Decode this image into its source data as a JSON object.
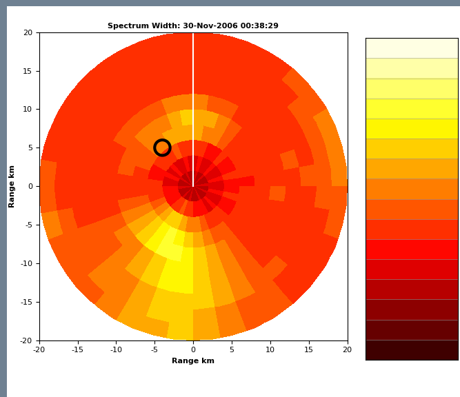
{
  "chart_data": {
    "type": "heatmap",
    "title": "Spectrum Width: 30-Nov-2006 00:38:29",
    "x_label": "Range km",
    "y_label": "Range km",
    "xlim": [
      -20,
      20
    ],
    "ylim": [
      -20,
      20
    ],
    "xticks": [
      -20,
      -15,
      -10,
      -5,
      0,
      5,
      10,
      15,
      20
    ],
    "yticks": [
      -20,
      -15,
      -10,
      -5,
      0,
      5,
      10,
      15,
      20
    ],
    "range_bins": [
      0,
      2,
      4,
      6,
      8,
      10,
      12,
      14,
      16,
      18,
      20
    ],
    "azimuth_bins": [
      0,
      10,
      20,
      30,
      40,
      50,
      60,
      70,
      80,
      90,
      100,
      110,
      120,
      130,
      140,
      150,
      160,
      170,
      180,
      190,
      200,
      210,
      220,
      230,
      240,
      250,
      260,
      270,
      280,
      290,
      300,
      310,
      320,
      330,
      340,
      350,
      360
    ],
    "cells": [
      [
        3,
        4,
        3,
        3,
        4,
        3,
        3,
        3,
        4,
        3,
        3,
        4,
        3,
        3,
        3,
        4,
        3,
        3,
        3,
        4,
        3,
        3,
        4,
        3,
        3,
        3,
        4,
        3,
        3,
        3,
        4,
        3,
        3,
        4,
        3,
        3
      ],
      [
        4,
        5,
        4,
        4,
        5,
        4,
        4,
        5,
        4,
        4,
        5,
        4,
        4,
        5,
        4,
        5,
        5,
        5,
        6,
        6,
        7,
        6,
        6,
        5,
        5,
        5,
        5,
        4,
        4,
        5,
        4,
        5,
        4,
        4,
        5,
        4
      ],
      [
        6,
        6,
        5,
        5,
        6,
        5,
        5,
        6,
        5,
        5,
        6,
        5,
        5,
        6,
        6,
        6,
        7,
        8,
        8,
        9,
        10,
        10,
        9,
        8,
        7,
        6,
        6,
        6,
        5,
        5,
        6,
        6,
        6,
        7,
        6,
        6
      ],
      [
        9,
        8,
        8,
        7,
        6,
        6,
        6,
        6,
        5,
        6,
        6,
        6,
        6,
        6,
        7,
        7,
        8,
        9,
        10,
        11,
        12,
        11,
        10,
        9,
        8,
        7,
        6,
        6,
        6,
        7,
        7,
        8,
        8,
        9,
        9,
        9
      ],
      [
        9,
        9,
        8,
        7,
        6,
        6,
        6,
        6,
        6,
        6,
        6,
        6,
        6,
        6,
        7,
        8,
        9,
        10,
        11,
        12,
        12,
        11,
        10,
        9,
        8,
        7,
        6,
        6,
        7,
        7,
        7,
        8,
        8,
        8,
        9,
        10
      ],
      [
        8,
        7,
        7,
        6,
        6,
        6,
        6,
        6,
        6,
        7,
        6,
        6,
        6,
        6,
        7,
        8,
        9,
        10,
        11,
        11,
        10,
        9,
        8,
        8,
        7,
        6,
        6,
        6,
        6,
        6,
        7,
        7,
        7,
        7,
        8,
        8
      ],
      [
        6,
        6,
        6,
        6,
        6,
        6,
        6,
        7,
        6,
        6,
        6,
        6,
        6,
        6,
        7,
        8,
        9,
        10,
        11,
        11,
        10,
        9,
        8,
        7,
        7,
        6,
        6,
        6,
        6,
        6,
        6,
        6,
        6,
        6,
        6,
        6
      ],
      [
        6,
        6,
        6,
        6,
        6,
        6,
        6,
        6,
        7,
        6,
        6,
        6,
        6,
        7,
        7,
        8,
        9,
        10,
        10,
        10,
        9,
        8,
        8,
        7,
        7,
        6,
        6,
        6,
        6,
        6,
        6,
        6,
        6,
        6,
        6,
        6
      ],
      [
        6,
        6,
        6,
        6,
        6,
        7,
        7,
        7,
        7,
        7,
        6,
        6,
        6,
        6,
        7,
        7,
        8,
        9,
        10,
        10,
        9,
        8,
        8,
        7,
        7,
        7,
        6,
        6,
        6,
        6,
        6,
        6,
        6,
        6,
        6,
        6
      ],
      [
        6,
        6,
        6,
        6,
        7,
        7,
        8,
        8,
        8,
        7,
        7,
        6,
        6,
        6,
        7,
        7,
        8,
        9,
        10,
        9,
        9,
        8,
        7,
        7,
        7,
        8,
        7,
        7,
        6,
        6,
        6,
        6,
        6,
        6,
        6,
        6
      ]
    ],
    "colorbar": {
      "range": [
        0,
        16
      ],
      "ticks": []
    },
    "highlight": {
      "x": -4,
      "y": 5,
      "radius": 1
    },
    "line": {
      "x": [
        0,
        0
      ],
      "y": [
        0,
        20
      ]
    }
  }
}
